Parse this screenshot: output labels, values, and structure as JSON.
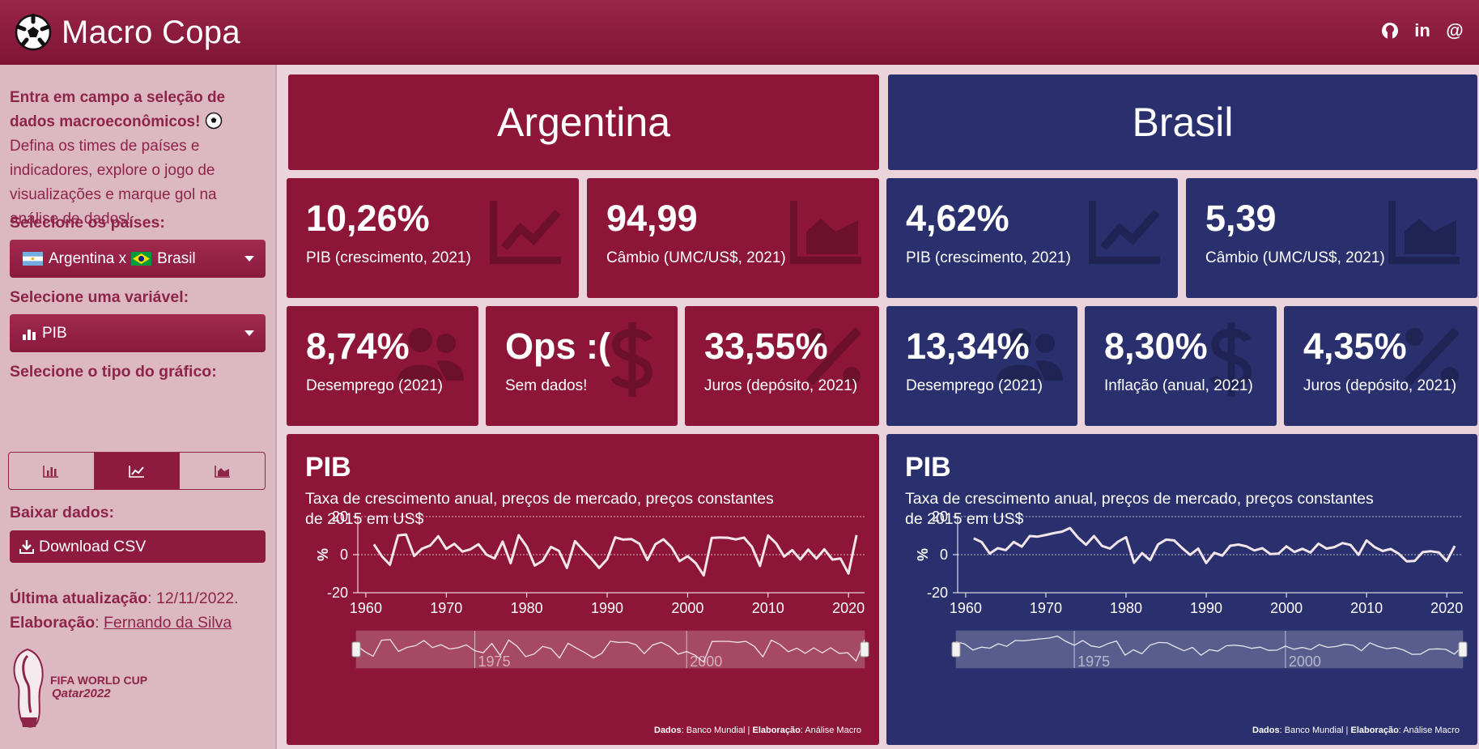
{
  "app": {
    "title": "Macro Copa"
  },
  "header": {
    "icons": [
      "github-icon",
      "linkedin-icon",
      "at-icon"
    ],
    "icon_glyphs": [
      "⌥",
      "in",
      "@"
    ]
  },
  "sidebar": {
    "intro_bold": "Entra em campo a seleção de dados macroeconômicos!",
    "intro_text": "Defina os times de países e indicadores, explore o jogo de visualizações e marque gol na análise de dados!",
    "countries_label": "Selecione os países:",
    "countries_value_a": "Argentina x",
    "countries_value_b": "Brasil",
    "variable_label": "Selecione uma variável:",
    "variable_value": "PIB",
    "chart_type_label": "Selecione o tipo do gráfico:",
    "chart_types": [
      "bar-chart-icon",
      "line-chart-icon",
      "area-chart-icon"
    ],
    "active_chart_type": 1,
    "download_label": "Baixar dados:",
    "download_button": "Download CSV",
    "last_update_label": "Última atualização",
    "last_update_value": ": 12/11/2022.",
    "author_label": "Elaboração",
    "author_sep": ": ",
    "author_name": "Fernando da Silva",
    "world_cup_line1": "FIFA WORLD CUP",
    "world_cup_line2": "Qatar2022"
  },
  "colors": {
    "argentina": "#8d1538",
    "brasil": "#2a2f6e",
    "accent": "#8e1a3f"
  },
  "argentina": {
    "name": "Argentina",
    "boxes_top": [
      {
        "value": "10,26%",
        "label": "PIB (crescimento, 2021)",
        "icon": "line-chart-icon"
      },
      {
        "value": "94,99",
        "label": "Câmbio (UMC/US$, 2021)",
        "icon": "area-chart-icon"
      }
    ],
    "boxes_bottom": [
      {
        "value": "8,74%",
        "label": "Desemprego (2021)",
        "icon": "users-icon"
      },
      {
        "value": "Ops :(",
        "label": "Sem dados!",
        "icon": "dollar-icon"
      },
      {
        "value": "33,55%",
        "label": "Juros (depósito, 2021)",
        "icon": "percent-icon"
      }
    ],
    "chart": {
      "title": "PIB",
      "subtitle": "Taxa de crescimento anual, preços de mercado, preços constantes de 2015 em US$",
      "source_label": "Dados",
      "source_value": ": Banco Mundial | ",
      "author_label": "Elaboração",
      "author_value": ": Análise Macro"
    }
  },
  "brasil": {
    "name": "Brasil",
    "boxes_top": [
      {
        "value": "4,62%",
        "label": "PIB (crescimento, 2021)",
        "icon": "line-chart-icon"
      },
      {
        "value": "5,39",
        "label": "Câmbio (UMC/US$, 2021)",
        "icon": "area-chart-icon"
      }
    ],
    "boxes_bottom": [
      {
        "value": "13,34%",
        "label": "Desemprego (2021)",
        "icon": "users-icon"
      },
      {
        "value": "8,30%",
        "label": "Inflação (anual, 2021)",
        "icon": "dollar-icon"
      },
      {
        "value": "4,35%",
        "label": "Juros (depósito, 2021)",
        "icon": "percent-icon"
      }
    ],
    "chart": {
      "title": "PIB",
      "subtitle": "Taxa de crescimento anual, preços de mercado, preços constantes de 2015 em US$",
      "source_label": "Dados",
      "source_value": ": Banco Mundial | ",
      "author_label": "Elaboração",
      "author_value": ": Análise Macro"
    }
  },
  "chart_data": [
    {
      "type": "line",
      "title": "PIB",
      "subtitle": "Taxa de crescimento anual, preços de mercado, preços constantes de 2015 em US$",
      "ylabel": "%",
      "ylim": [
        -20,
        20
      ],
      "yticks": [
        -20,
        0,
        20
      ],
      "xticks": [
        1960,
        1970,
        1980,
        1990,
        2000,
        2010,
        2020
      ],
      "navigator_ticks": [
        1975,
        2000
      ],
      "x": [
        1961,
        1962,
        1963,
        1964,
        1965,
        1966,
        1967,
        1968,
        1969,
        1970,
        1971,
        1972,
        1973,
        1974,
        1975,
        1976,
        1977,
        1978,
        1979,
        1980,
        1981,
        1982,
        1983,
        1984,
        1985,
        1986,
        1987,
        1988,
        1989,
        1990,
        1991,
        1992,
        1993,
        1994,
        1995,
        1996,
        1997,
        1998,
        1999,
        2000,
        2001,
        2002,
        2003,
        2004,
        2005,
        2006,
        2007,
        2008,
        2009,
        2010,
        2011,
        2012,
        2013,
        2014,
        2015,
        2016,
        2017,
        2018,
        2019,
        2020,
        2021
      ],
      "series": [
        {
          "name": "Argentina",
          "values": [
            5.4,
            -0.9,
            -5.3,
            10.1,
            10.6,
            -0.7,
            3.2,
            4.8,
            9.7,
            3.0,
            5.7,
            1.6,
            2.8,
            5.5,
            0.0,
            -2.0,
            6.9,
            -4.5,
            10.2,
            4.2,
            -5.7,
            -3.2,
            4.1,
            2.0,
            -7.0,
            7.1,
            2.5,
            -2.0,
            -7.0,
            -2.4,
            9.1,
            7.9,
            8.2,
            5.8,
            -2.8,
            5.5,
            8.1,
            3.9,
            -3.4,
            -0.8,
            -4.4,
            -10.9,
            8.8,
            9.0,
            8.9,
            8.0,
            9.0,
            4.1,
            -5.9,
            10.1,
            6.0,
            -1.0,
            2.4,
            -2.5,
            2.7,
            -2.1,
            2.8,
            -2.6,
            -2.0,
            -9.9,
            10.3
          ]
        }
      ]
    },
    {
      "type": "line",
      "title": "PIB",
      "subtitle": "Taxa de crescimento anual, preços de mercado, preços constantes de 2015 em US$",
      "ylabel": "%",
      "ylim": [
        -20,
        20
      ],
      "yticks": [
        -20,
        0,
        20
      ],
      "xticks": [
        1960,
        1970,
        1980,
        1990,
        2000,
        2010,
        2020
      ],
      "navigator_ticks": [
        1975,
        2000
      ],
      "x": [
        1961,
        1962,
        1963,
        1964,
        1965,
        1966,
        1967,
        1968,
        1969,
        1970,
        1971,
        1972,
        1973,
        1974,
        1975,
        1976,
        1977,
        1978,
        1979,
        1980,
        1981,
        1982,
        1983,
        1984,
        1985,
        1986,
        1987,
        1988,
        1989,
        1990,
        1991,
        1992,
        1993,
        1994,
        1995,
        1996,
        1997,
        1998,
        1999,
        2000,
        2001,
        2002,
        2003,
        2004,
        2005,
        2006,
        2007,
        2008,
        2009,
        2010,
        2011,
        2012,
        2013,
        2014,
        2015,
        2016,
        2017,
        2018,
        2019,
        2020,
        2021
      ],
      "series": [
        {
          "name": "Brasil",
          "values": [
            8.6,
            6.6,
            0.6,
            3.4,
            2.4,
            6.7,
            4.2,
            9.8,
            9.5,
            10.4,
            11.3,
            12.1,
            14.0,
            9.0,
            5.2,
            9.8,
            4.6,
            3.2,
            6.8,
            9.2,
            -4.3,
            0.8,
            -2.9,
            5.4,
            7.9,
            7.5,
            3.5,
            -0.1,
            3.2,
            -4.4,
            1.0,
            -0.5,
            4.7,
            5.3,
            4.4,
            2.2,
            3.4,
            0.3,
            0.5,
            4.4,
            1.4,
            3.1,
            1.1,
            5.8,
            3.2,
            4.0,
            6.1,
            5.1,
            -0.1,
            7.5,
            4.0,
            1.9,
            3.0,
            0.5,
            -3.5,
            -3.3,
            1.3,
            1.8,
            1.2,
            -3.3,
            4.6
          ]
        }
      ]
    }
  ]
}
